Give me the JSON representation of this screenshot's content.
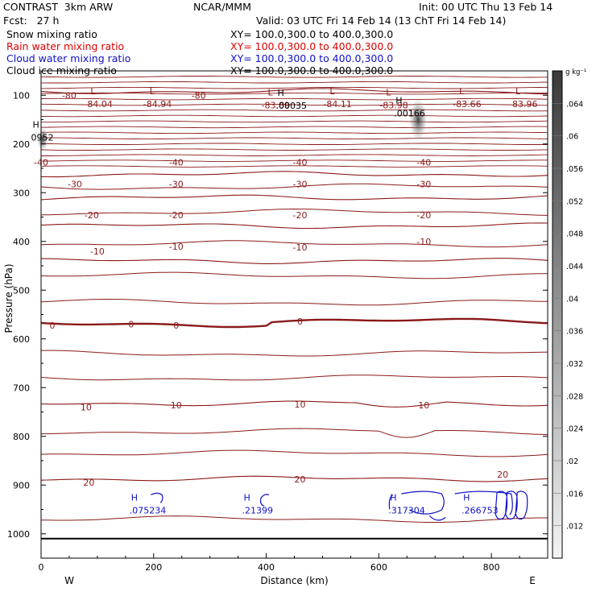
{
  "header": {
    "model": "CONTRAST  3km ARW",
    "org": "NCAR/MMM",
    "init": "Init: 00 UTC Thu 13 Feb 14",
    "fcst": "Fcst:   27 h",
    "valid": "Valid: 03 UTC Fri 14 Feb 14 (13 ChT Fri 14 Feb 14)",
    "fields": [
      {
        "name": "Snow mixing ratio",
        "xy": "XY= 100.0,300.0 to 400.0,300.0",
        "color": "#000000"
      },
      {
        "name": "Rain water mixing ratio",
        "xy": "XY= 100.0,300.0 to 400.0,300.0",
        "color": "#e00000"
      },
      {
        "name": "Cloud water mixing ratio",
        "xy": "XY= 100.0,300.0 to 400.0,300.0",
        "color": "#1010c8"
      },
      {
        "name": "Cloud ice mixing ratio",
        "xy": "XY= 100.0,300.0 to 400.0,300.0",
        "color": "#000000"
      }
    ]
  },
  "chart_data": {
    "type": "contour",
    "xlabel": "Distance (km)",
    "ylabel": "Pressure (hPa)",
    "xlim": [
      0,
      900
    ],
    "ylim": [
      1050,
      50
    ],
    "x_ticks": [
      0,
      200,
      400,
      600,
      800
    ],
    "y_ticks": [
      100,
      200,
      300,
      400,
      500,
      600,
      700,
      800,
      900,
      1000
    ],
    "x_end_labels": {
      "left": "W",
      "right": "E"
    },
    "colorbar": {
      "unit": "g kg⁻¹",
      "labels": [
        ".064",
        ".06",
        ".056",
        ".052",
        ".048",
        ".044",
        ".04",
        ".036",
        ".032",
        ".028",
        ".024",
        ".02",
        ".016",
        ".012"
      ]
    },
    "temperature_contours": [
      {
        "label": "-80",
        "p": 92
      },
      {
        "label": "-40",
        "p": 262
      },
      {
        "label": "-30",
        "p": 310
      },
      {
        "label": "-20",
        "p": 368
      },
      {
        "label": "-10",
        "p": 440
      },
      {
        "label": "0",
        "p": 570,
        "bold": true
      },
      {
        "label": "10",
        "p": 732
      },
      {
        "label": "20",
        "p": 887
      }
    ],
    "temperature_label_positions": [
      {
        "label": "-80",
        "x": 50,
        "p": 100
      },
      {
        "label": "-80",
        "x": 280,
        "p": 100
      },
      {
        "label": "-40",
        "x": 0,
        "p": 238
      },
      {
        "label": "-40",
        "x": 240,
        "p": 238
      },
      {
        "label": "-40",
        "x": 460,
        "p": 238
      },
      {
        "label": "-40",
        "x": 680,
        "p": 238
      },
      {
        "label": "-30",
        "x": 60,
        "p": 282
      },
      {
        "label": "-30",
        "x": 240,
        "p": 282
      },
      {
        "label": "-30",
        "x": 460,
        "p": 282
      },
      {
        "label": "-30",
        "x": 680,
        "p": 282
      },
      {
        "label": "-20",
        "x": 90,
        "p": 346
      },
      {
        "label": "-20",
        "x": 240,
        "p": 346
      },
      {
        "label": "-20",
        "x": 460,
        "p": 346
      },
      {
        "label": "-20",
        "x": 680,
        "p": 346
      },
      {
        "label": "-10",
        "x": 100,
        "p": 420
      },
      {
        "label": "-10",
        "x": 240,
        "p": 410
      },
      {
        "label": "-10",
        "x": 460,
        "p": 412
      },
      {
        "label": "-10",
        "x": 680,
        "p": 400
      },
      {
        "label": "0",
        "x": 20,
        "p": 572
      },
      {
        "label": "0",
        "x": 160,
        "p": 570
      },
      {
        "label": "0",
        "x": 240,
        "p": 572
      },
      {
        "label": "0",
        "x": 460,
        "p": 564
      },
      {
        "label": "10",
        "x": 80,
        "p": 740
      },
      {
        "label": "10",
        "x": 240,
        "p": 736
      },
      {
        "label": "10",
        "x": 460,
        "p": 734
      },
      {
        "label": "10",
        "x": 680,
        "p": 736
      },
      {
        "label": "20",
        "x": 85,
        "p": 895
      },
      {
        "label": "20",
        "x": 460,
        "p": 888
      },
      {
        "label": "20",
        "x": 820,
        "p": 878
      }
    ],
    "lows": [
      {
        "label": "-84.04",
        "x": 105,
        "p": 108
      },
      {
        "label": "-84.94",
        "x": 210,
        "p": 108
      },
      {
        "label": "-83.89",
        "x": 420,
        "p": 110
      },
      {
        "label": "-84.11",
        "x": 530,
        "p": 108
      },
      {
        "label": "-83.98",
        "x": 630,
        "p": 110
      },
      {
        "label": "-83.66",
        "x": 760,
        "p": 108
      },
      {
        "label": "-83.96",
        "x": 860,
        "p": 108
      }
    ],
    "highs": [
      {
        "label": ".00166",
        "x": 670,
        "p": 140,
        "field": "snow"
      },
      {
        "label": ".00035",
        "x": 460,
        "p": 124,
        "field": "snow"
      },
      {
        "label": ".075234",
        "x": 200,
        "p": 955,
        "field": "cloud water"
      },
      {
        "label": ".21399",
        "x": 400,
        "p": 955,
        "field": "cloud water"
      },
      {
        "label": ".317304",
        "x": 660,
        "p": 955,
        "field": "cloud water"
      },
      {
        "label": ".266753",
        "x": 790,
        "p": 955,
        "field": "cloud water"
      },
      {
        "label": "0952",
        "x": 25,
        "p": 190,
        "field": "cloud ice"
      }
    ],
    "L_label": "L",
    "H_label": "H"
  },
  "colors": {
    "temperature": "#8b1a1a",
    "cloud_water": "#1010c8",
    "axis": "#000000"
  }
}
